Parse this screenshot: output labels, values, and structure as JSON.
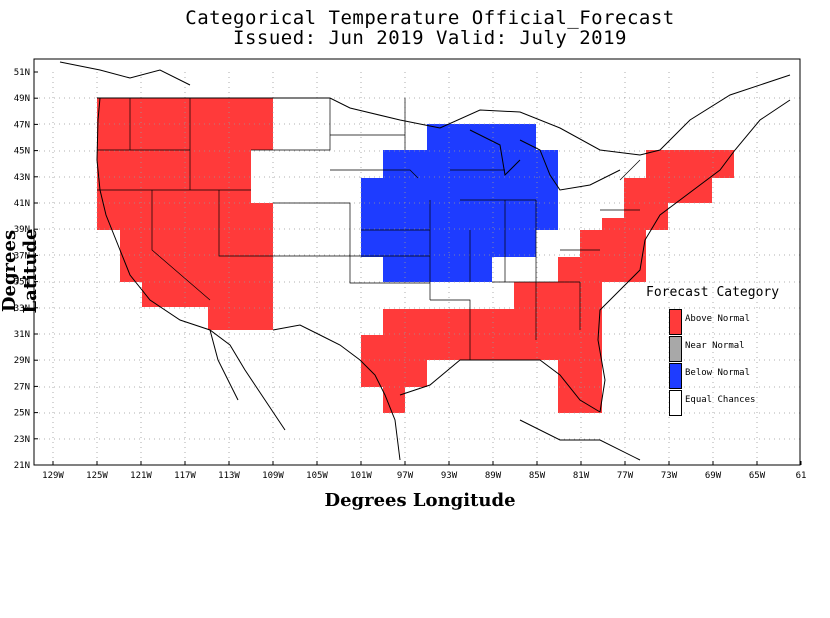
{
  "title_line1": "Categorical Temperature Official_Forecast",
  "title_line2": "Issued: Jun 2019 Valid: July 2019",
  "axes": {
    "xlabel": "Degrees Longitude",
    "ylabel": "Degrees Latitude",
    "x_ticks": [
      "129W",
      "125W",
      "121W",
      "117W",
      "113W",
      "109W",
      "105W",
      "101W",
      "97W",
      "93W",
      "89W",
      "85W",
      "81W",
      "77W",
      "73W",
      "69W",
      "65W",
      "61"
    ],
    "y_ticks": [
      "51N",
      "49N",
      "47N",
      "45N",
      "43N",
      "41N",
      "39N",
      "37N",
      "35N",
      "33N",
      "31N",
      "29N",
      "27N",
      "25N",
      "23N",
      "21N"
    ]
  },
  "legend": {
    "title": "Forecast Category",
    "items": [
      {
        "label": "Above Normal",
        "color": "#ff3a3a"
      },
      {
        "label": "Near Normal",
        "color": "#a8a8a8"
      },
      {
        "label": "Below Normal",
        "color": "#1e3cff"
      },
      {
        "label": "Equal Chances",
        "color": "#ffffff"
      }
    ]
  },
  "colors": {
    "above": "#ff3a3a",
    "below": "#1e3cff"
  }
}
